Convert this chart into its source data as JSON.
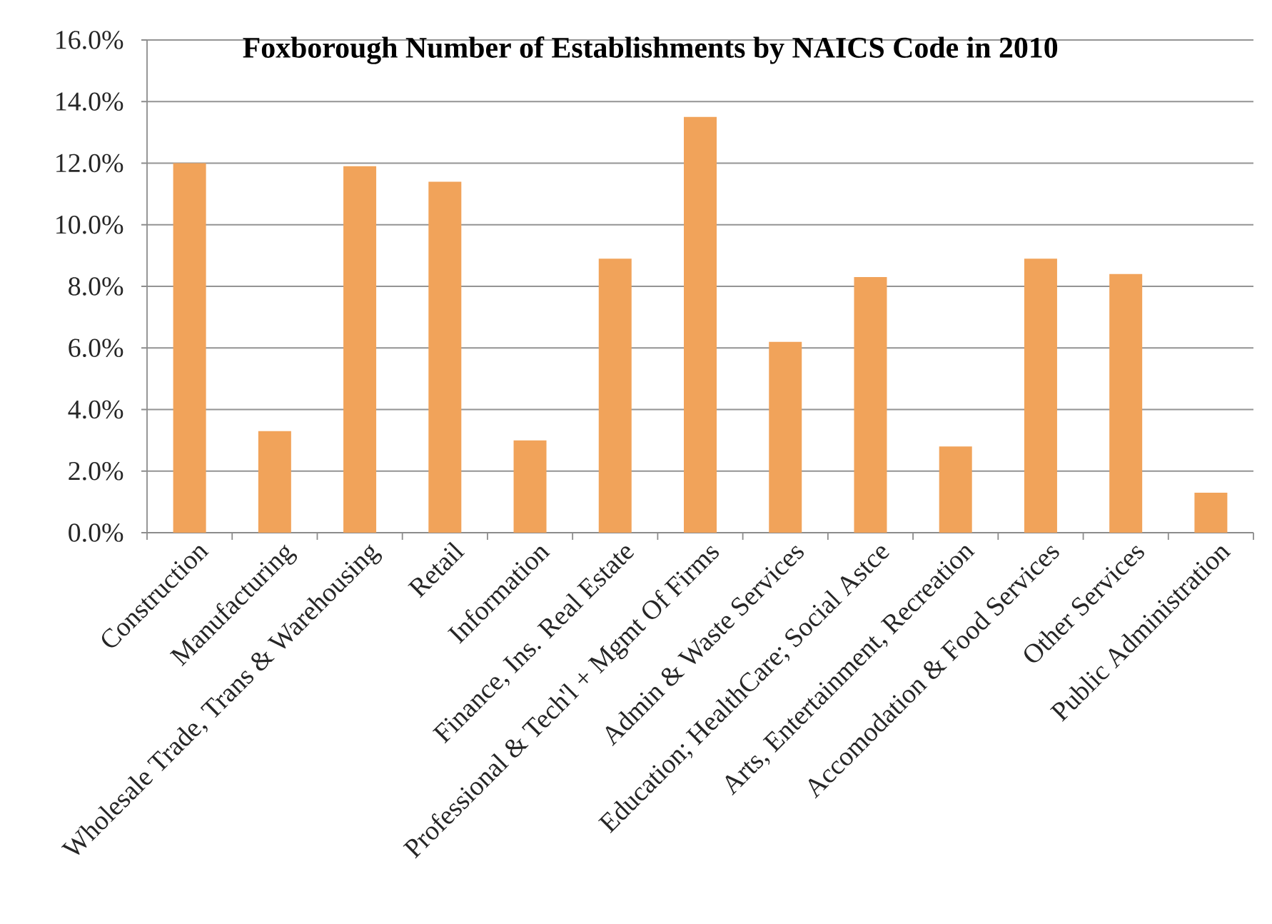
{
  "chart_data": {
    "type": "bar",
    "title": "Foxborough Number of Establishments by NAICS Code in 2010",
    "categories": [
      "Construction",
      "Manufacturing",
      "Wholesale Trade, Trans & Warehousing",
      "Retail",
      "Information",
      "Finance, Ins. Real Estate",
      "Professional & Tech'l + Mgmt Of Firms",
      "Admin & Waste Services",
      "Education; HealthCare; Social Astce",
      "Arts, Entertainment, Recreation",
      "Accomodation & Food Services",
      "Other Services",
      "Public Administration"
    ],
    "values": [
      12.0,
      3.3,
      11.9,
      11.4,
      3.0,
      8.9,
      13.5,
      6.2,
      8.3,
      2.8,
      8.9,
      8.4,
      1.3
    ],
    "color": "#f1a35a",
    "ylim": [
      0,
      16
    ],
    "yticks": [
      {
        "value": 0,
        "label": "0.0%"
      },
      {
        "value": 2,
        "label": "2.0%"
      },
      {
        "value": 4,
        "label": "4.0%"
      },
      {
        "value": 6,
        "label": "6.0%"
      },
      {
        "value": 8,
        "label": "8.0%"
      },
      {
        "value": 10,
        "label": "10.0%"
      },
      {
        "value": 12,
        "label": "12.0%"
      },
      {
        "value": 14,
        "label": "14.0%"
      },
      {
        "value": 16,
        "label": "16.0%"
      }
    ],
    "grid": "y"
  }
}
